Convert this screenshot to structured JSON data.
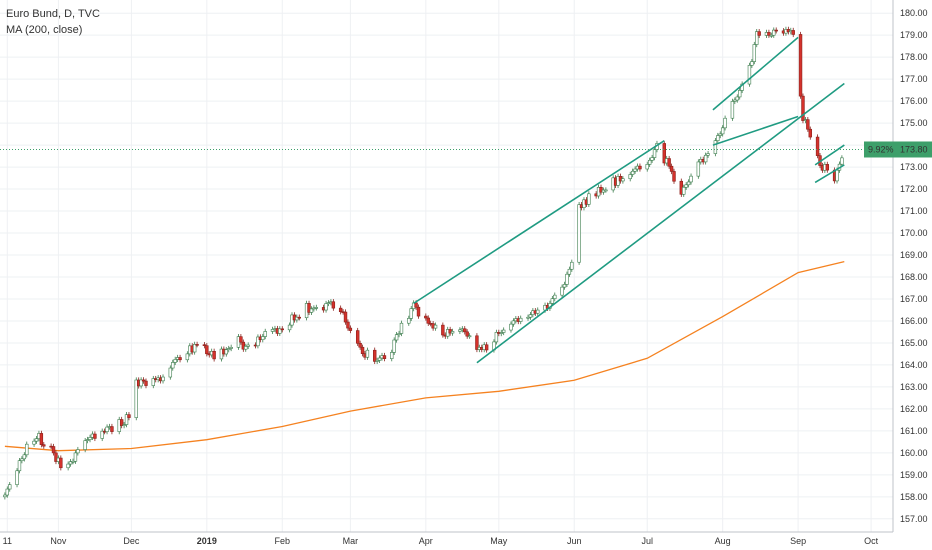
{
  "legend": {
    "symbol_line": "Euro Bund, D, TVC",
    "indicator_line": "MA (200, close)"
  },
  "price_badge": {
    "percent": "9.92%",
    "price": "173.80",
    "color": "#3d9f6a"
  },
  "colors": {
    "up_candle": "#ffffff",
    "up_border": "#3c7d4d",
    "down_candle": "#d4322c",
    "ma": "#f58220",
    "channel": "#1f9b82",
    "grid": "#eef0f3",
    "axis_text": "#333333"
  },
  "chart_data": {
    "type": "candlestick",
    "title": "Euro Bund, D, TVC",
    "ylim": [
      156.4,
      180.6
    ],
    "y_ticks": [
      "157.00",
      "158.00",
      "159.00",
      "160.00",
      "161.00",
      "162.00",
      "163.00",
      "164.00",
      "165.00",
      "166.00",
      "167.00",
      "168.00",
      "169.00",
      "170.00",
      "171.00",
      "172.00",
      "173.00",
      "174.00",
      "175.00",
      "176.00",
      "177.00",
      "178.00",
      "179.00",
      "180.00"
    ],
    "x_ticks": [
      {
        "label": "11",
        "date": "2018-10-11",
        "bold": false
      },
      {
        "label": "Nov",
        "date": "2018-11-01",
        "bold": false
      },
      {
        "label": "Dec",
        "date": "2018-12-01",
        "bold": false
      },
      {
        "label": "2019",
        "date": "2019-01-01",
        "bold": true
      },
      {
        "label": "Feb",
        "date": "2019-02-01",
        "bold": false
      },
      {
        "label": "Mar",
        "date": "2019-03-01",
        "bold": false
      },
      {
        "label": "Apr",
        "date": "2019-04-01",
        "bold": false
      },
      {
        "label": "May",
        "date": "2019-05-01",
        "bold": false
      },
      {
        "label": "Jun",
        "date": "2019-06-01",
        "bold": false
      },
      {
        "label": "Jul",
        "date": "2019-07-01",
        "bold": false
      },
      {
        "label": "Aug",
        "date": "2019-08-01",
        "bold": false
      },
      {
        "label": "Sep",
        "date": "2019-09-01",
        "bold": false
      },
      {
        "label": "Oct",
        "date": "2019-10-01",
        "bold": false
      }
    ],
    "close_series": [
      [
        "2018-10-10",
        158.0
      ],
      [
        "2018-10-15",
        159.3
      ],
      [
        "2018-10-19",
        160.2
      ],
      [
        "2018-10-24",
        160.7
      ],
      [
        "2018-10-29",
        160.1
      ],
      [
        "2018-11-02",
        159.4
      ],
      [
        "2018-11-07",
        159.8
      ],
      [
        "2018-11-12",
        160.4
      ],
      [
        "2018-11-16",
        160.8
      ],
      [
        "2018-11-21",
        161.0
      ],
      [
        "2018-11-26",
        161.3
      ],
      [
        "2018-11-30",
        161.6
      ],
      [
        "2018-12-03",
        163.3
      ],
      [
        "2018-12-07",
        163.0
      ],
      [
        "2018-12-12",
        163.4
      ],
      [
        "2018-12-17",
        163.9
      ],
      [
        "2018-12-21",
        164.2
      ],
      [
        "2018-12-28",
        165.0
      ],
      [
        "2019-01-04",
        164.3
      ],
      [
        "2019-01-09",
        164.8
      ],
      [
        "2019-01-14",
        165.1
      ],
      [
        "2019-01-18",
        164.7
      ],
      [
        "2019-01-23",
        165.3
      ],
      [
        "2019-01-28",
        165.7
      ],
      [
        "2019-02-01",
        165.6
      ],
      [
        "2019-02-06",
        166.2
      ],
      [
        "2019-02-11",
        166.6
      ],
      [
        "2019-02-15",
        166.4
      ],
      [
        "2019-02-20",
        166.7
      ],
      [
        "2019-02-25",
        166.5
      ],
      [
        "2019-03-01",
        165.4
      ],
      [
        "2019-03-05",
        164.6
      ],
      [
        "2019-03-08",
        164.5
      ],
      [
        "2019-03-13",
        164.2
      ],
      [
        "2019-03-18",
        164.7
      ],
      [
        "2019-03-22",
        165.9
      ],
      [
        "2019-03-27",
        166.6
      ],
      [
        "2019-04-01",
        166.2
      ],
      [
        "2019-04-05",
        165.6
      ],
      [
        "2019-04-10",
        165.4
      ],
      [
        "2019-04-15",
        165.8
      ],
      [
        "2019-04-19",
        165.3
      ],
      [
        "2019-04-24",
        164.6
      ],
      [
        "2019-04-29",
        165.2
      ],
      [
        "2019-05-03",
        165.6
      ],
      [
        "2019-05-08",
        165.9
      ],
      [
        "2019-05-13",
        166.2
      ],
      [
        "2019-05-17",
        166.4
      ],
      [
        "2019-05-22",
        166.9
      ],
      [
        "2019-05-27",
        167.4
      ],
      [
        "2019-05-31",
        168.5
      ],
      [
        "2019-06-03",
        171.3
      ],
      [
        "2019-06-07",
        171.6
      ],
      [
        "2019-06-12",
        172.0
      ],
      [
        "2019-06-17",
        172.3
      ],
      [
        "2019-06-21",
        172.6
      ],
      [
        "2019-06-26",
        172.9
      ],
      [
        "2019-07-01",
        173.2
      ],
      [
        "2019-07-05",
        173.9
      ],
      [
        "2019-07-10",
        173.0
      ],
      [
        "2019-07-15",
        171.8
      ],
      [
        "2019-07-19",
        172.6
      ],
      [
        "2019-07-24",
        173.3
      ],
      [
        "2019-07-29",
        174.0
      ],
      [
        "2019-08-02",
        175.0
      ],
      [
        "2019-08-07",
        176.4
      ],
      [
        "2019-08-12",
        177.5
      ],
      [
        "2019-08-15",
        179.0
      ],
      [
        "2019-08-20",
        178.9
      ],
      [
        "2019-08-23",
        179.2
      ],
      [
        "2019-08-28",
        179.1
      ],
      [
        "2019-08-30",
        179.0
      ],
      [
        "2019-09-03",
        175.3
      ],
      [
        "2019-09-06",
        174.3
      ],
      [
        "2019-09-11",
        173.0
      ],
      [
        "2019-09-16",
        172.5
      ],
      [
        "2019-09-20",
        173.8
      ]
    ],
    "series": [
      {
        "name": "MA (200, close)",
        "points": [
          [
            "2018-10-10",
            160.3
          ],
          [
            "2018-11-01",
            160.1
          ],
          [
            "2018-12-01",
            160.2
          ],
          [
            "2019-01-01",
            160.6
          ],
          [
            "2019-02-01",
            161.2
          ],
          [
            "2019-03-01",
            161.9
          ],
          [
            "2019-04-01",
            162.5
          ],
          [
            "2019-05-01",
            162.8
          ],
          [
            "2019-06-01",
            163.3
          ],
          [
            "2019-07-01",
            164.3
          ],
          [
            "2019-08-01",
            166.2
          ],
          [
            "2019-09-01",
            168.2
          ],
          [
            "2019-09-20",
            168.7
          ]
        ]
      }
    ],
    "trendlines": [
      {
        "from": [
          "2019-03-27",
          166.8
        ],
        "to": [
          "2019-07-08",
          174.2
        ]
      },
      {
        "from": [
          "2019-04-22",
          164.1
        ],
        "to": [
          "2019-09-20",
          176.8
        ]
      },
      {
        "from": [
          "2019-07-28",
          174.0
        ],
        "to": [
          "2019-09-01",
          175.3
        ]
      },
      {
        "from": [
          "2019-07-28",
          175.6
        ],
        "to": [
          "2019-09-01",
          178.9
        ]
      },
      {
        "from": [
          "2019-09-08",
          172.3
        ],
        "to": [
          "2019-09-20",
          173.1
        ]
      },
      {
        "from": [
          "2019-09-08",
          173.1
        ],
        "to": [
          "2019-09-20",
          174.0
        ]
      }
    ]
  }
}
